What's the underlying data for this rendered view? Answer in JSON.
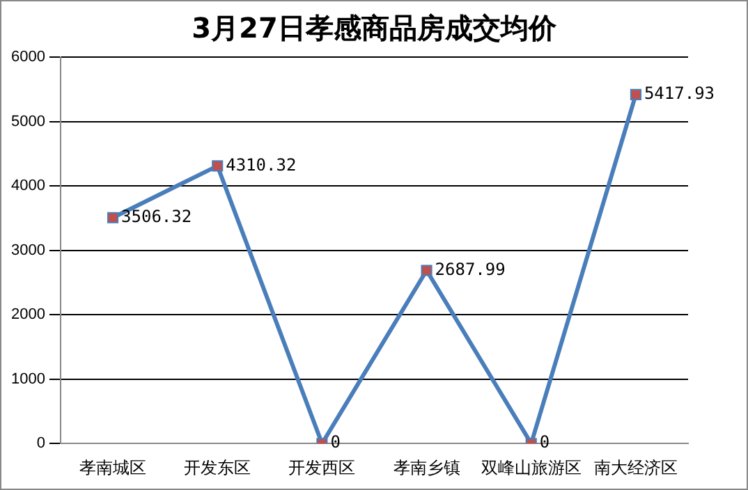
{
  "chart_data": {
    "type": "line",
    "title": "3月27日孝感商品房成交均价",
    "categories": [
      "孝南城区",
      "开发东区",
      "开发西区",
      "孝南乡镇",
      "双峰山旅游区",
      "南大经济区"
    ],
    "series": [
      {
        "color": "#4a7ebb",
        "values": [
          3506.32,
          4310.32,
          0,
          2687.99,
          0,
          5417.93
        ]
      }
    ],
    "ylim": [
      0,
      6000
    ],
    "yticks": [
      0,
      1000,
      2000,
      3000,
      4000,
      5000,
      6000
    ],
    "grid": "y",
    "legend": false,
    "marker": "square",
    "line_style": "solid",
    "data_labels": true
  }
}
